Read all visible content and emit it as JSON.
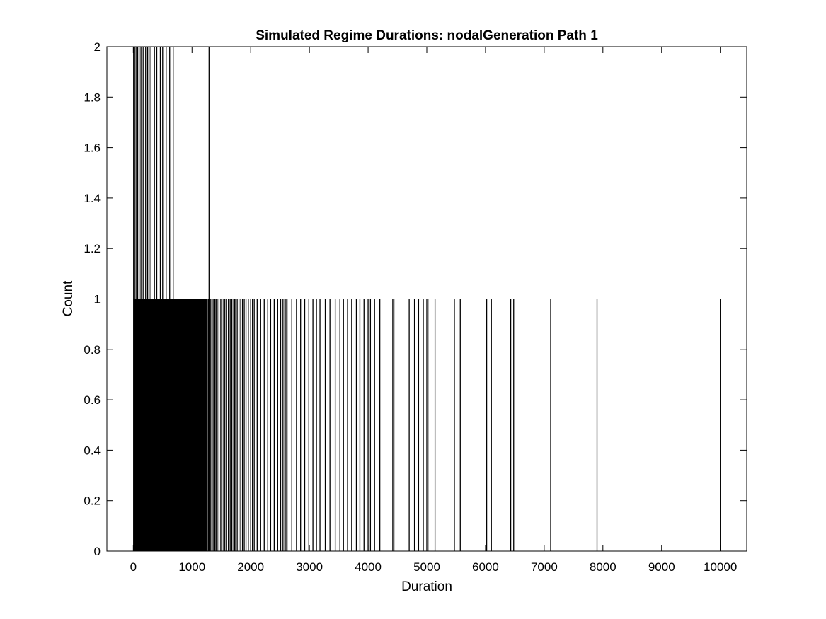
{
  "figure": {
    "title": "Simulated Regime Durations: nodalGeneration Path 1",
    "xlabel": "Duration",
    "ylabel": "Count"
  },
  "chart_data": {
    "type": "bar",
    "title": "Simulated Regime Durations: nodalGeneration Path 1",
    "xlabel": "Duration",
    "ylabel": "Count",
    "xlim": [
      -450,
      10450
    ],
    "ylim": [
      0,
      2
    ],
    "xticks": [
      0,
      1000,
      2000,
      3000,
      4000,
      5000,
      6000,
      7000,
      8000,
      9000,
      10000
    ],
    "yticks": [
      0,
      0.2,
      0.4,
      0.6,
      0.8,
      1,
      1.2,
      1.4,
      1.6,
      1.8,
      2
    ],
    "xtick_labels": [
      "0",
      "1000",
      "2000",
      "3000",
      "4000",
      "5000",
      "6000",
      "7000",
      "8000",
      "9000",
      "10000"
    ],
    "ytick_labels": [
      "0",
      "0.2",
      "0.4",
      "0.6",
      "0.8",
      "1",
      "1.2",
      "1.4",
      "1.6",
      "1.8",
      "2"
    ],
    "grid": false,
    "bar_color": "#000000",
    "dense_region": {
      "from": 0,
      "to": 1250,
      "count": 1
    },
    "series": [
      {
        "values_count_2": [
          5,
          30,
          55,
          75,
          100,
          130,
          150,
          175,
          210,
          245,
          270,
          300,
          360,
          400,
          460,
          500,
          560,
          620,
          680,
          1290
        ],
        "values_count_1": [
          1260,
          1280,
          1300,
          1320,
          1345,
          1370,
          1390,
          1410,
          1430,
          1460,
          1490,
          1510,
          1540,
          1560,
          1590,
          1620,
          1650,
          1680,
          1710,
          1725,
          1745,
          1770,
          1800,
          1830,
          1860,
          1890,
          1920,
          1960,
          2000,
          2030,
          2060,
          2110,
          2170,
          2230,
          2290,
          2340,
          2400,
          2460,
          2510,
          2550,
          2580,
          2600,
          2620,
          2700,
          2780,
          2850,
          2920,
          2990,
          3060,
          3120,
          3180,
          3270,
          3350,
          3440,
          3520,
          3580,
          3650,
          3720,
          3800,
          3860,
          3930,
          4000,
          4040,
          4110,
          4200,
          4420,
          4440,
          4700,
          4790,
          4860,
          4940,
          5000,
          5020,
          5140,
          5470,
          5570,
          6020,
          6100,
          6430,
          6480,
          7110,
          7900,
          10000
        ]
      }
    ]
  }
}
